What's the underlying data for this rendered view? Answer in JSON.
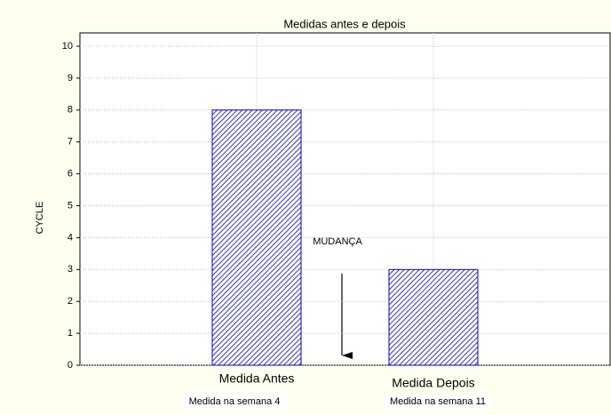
{
  "chart_data": {
    "type": "bar",
    "title": "Medidas antes e depois",
    "ylabel": "CYCLE",
    "categories": [
      "Medida Antes",
      "Medida Depois"
    ],
    "category_notes": [
      "Medida na semana 4",
      "Medida na semana 11"
    ],
    "values": [
      8,
      3
    ],
    "color": "#0000cc",
    "ylim": [
      0,
      10
    ],
    "yticks": [
      0,
      1,
      2,
      3,
      4,
      5,
      6,
      7,
      8,
      9,
      10
    ],
    "grid": true,
    "annotations": [
      "MUDANÇA"
    ]
  }
}
